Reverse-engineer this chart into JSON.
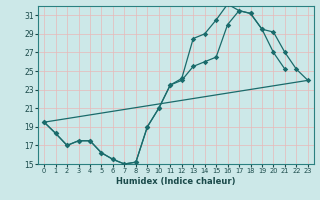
{
  "xlabel": "Humidex (Indice chaleur)",
  "xlim": [
    -0.5,
    23.5
  ],
  "ylim": [
    15,
    32
  ],
  "yticks": [
    15,
    17,
    19,
    21,
    23,
    25,
    27,
    29,
    31
  ],
  "xticks": [
    0,
    1,
    2,
    3,
    4,
    5,
    6,
    7,
    8,
    9,
    10,
    11,
    12,
    13,
    14,
    15,
    16,
    17,
    18,
    19,
    20,
    21,
    22,
    23
  ],
  "bg_color": "#cce8e8",
  "grid_color": "#aad4d4",
  "line_color": "#1a6b6b",
  "line1_x": [
    0,
    1,
    2,
    3,
    4,
    5,
    6,
    7,
    8,
    9,
    10,
    11,
    12,
    13,
    14,
    15,
    16,
    17,
    18,
    19,
    20,
    21
  ],
  "line1_y": [
    19.5,
    18.3,
    17.0,
    17.5,
    17.5,
    16.2,
    15.5,
    15.0,
    15.2,
    19.0,
    21.0,
    23.5,
    24.2,
    28.5,
    29.0,
    30.5,
    32.2,
    31.5,
    31.2,
    29.5,
    27.0,
    25.2
  ],
  "line2_x": [
    0,
    1,
    2,
    3,
    4,
    5,
    6,
    7,
    8,
    9,
    10,
    11,
    12,
    13,
    14,
    15,
    16,
    17,
    18,
    19,
    20,
    21,
    22,
    23
  ],
  "line2_y": [
    19.5,
    18.3,
    17.0,
    17.5,
    17.5,
    16.2,
    15.5,
    15.0,
    15.2,
    19.0,
    21.0,
    23.5,
    24.0,
    25.5,
    26.0,
    26.5,
    30.0,
    31.5,
    31.2,
    29.5,
    29.2,
    27.0,
    25.2,
    24.0
  ],
  "line3_x": [
    0,
    23
  ],
  "line3_y": [
    19.5,
    24.0
  ]
}
